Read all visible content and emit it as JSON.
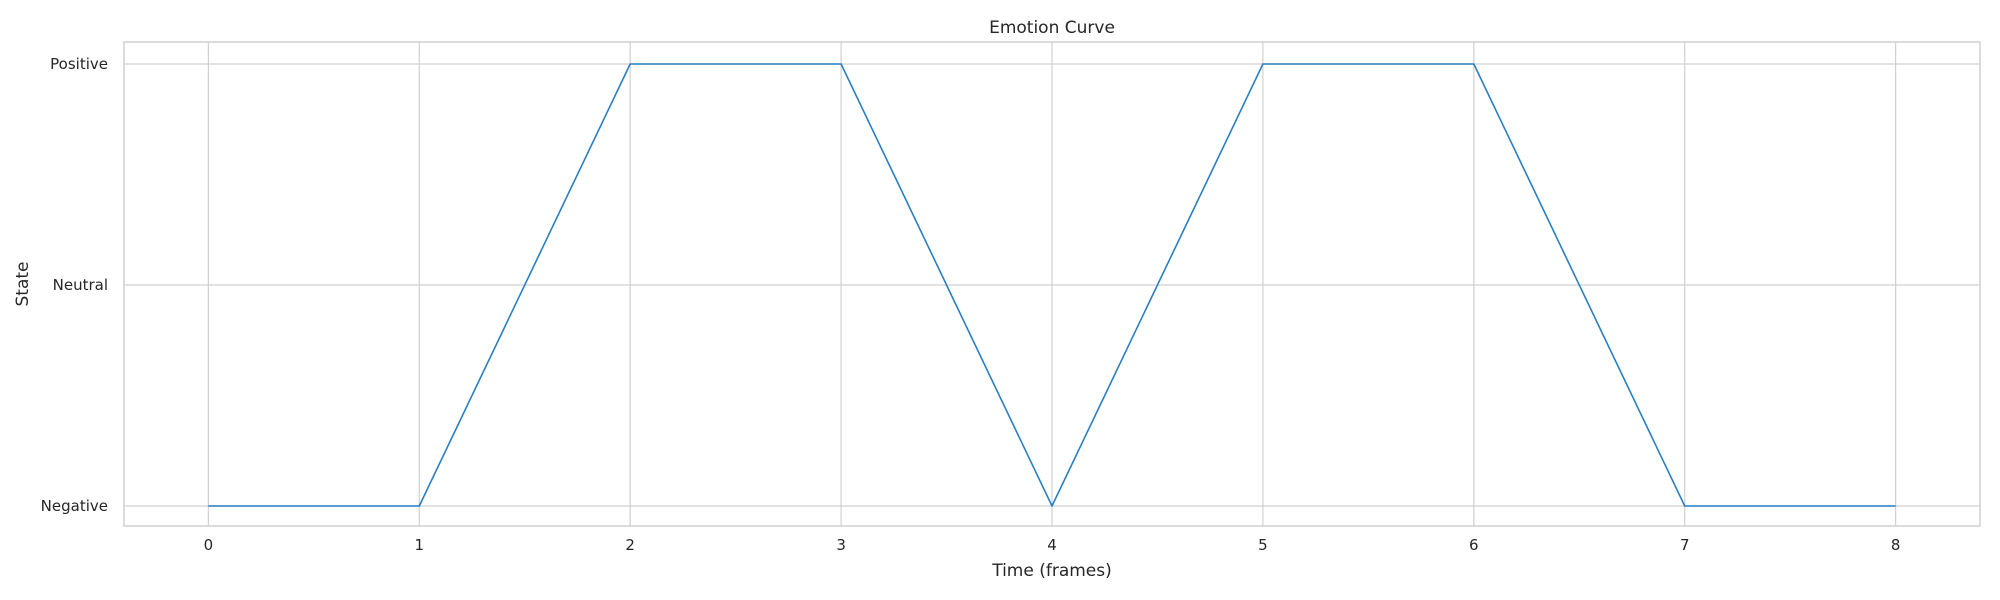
{
  "chart_data": {
    "type": "line",
    "title": "Emotion Curve",
    "xlabel": "Time (frames)",
    "ylabel": "State",
    "x": [
      0,
      1,
      2,
      3,
      4,
      5,
      6,
      7,
      8
    ],
    "y_categories": [
      "Negative",
      "Neutral",
      "Positive"
    ],
    "series": [
      {
        "values": [
          "Negative",
          "Negative",
          "Positive",
          "Positive",
          "Negative",
          "Positive",
          "Positive",
          "Negative",
          "Negative"
        ],
        "color": "#2a7fc1"
      }
    ],
    "xlim": [
      -0.4,
      8.4
    ],
    "xticks": [
      0,
      1,
      2,
      3,
      4,
      5,
      6,
      7,
      8
    ],
    "grid": true,
    "legend": "none"
  }
}
